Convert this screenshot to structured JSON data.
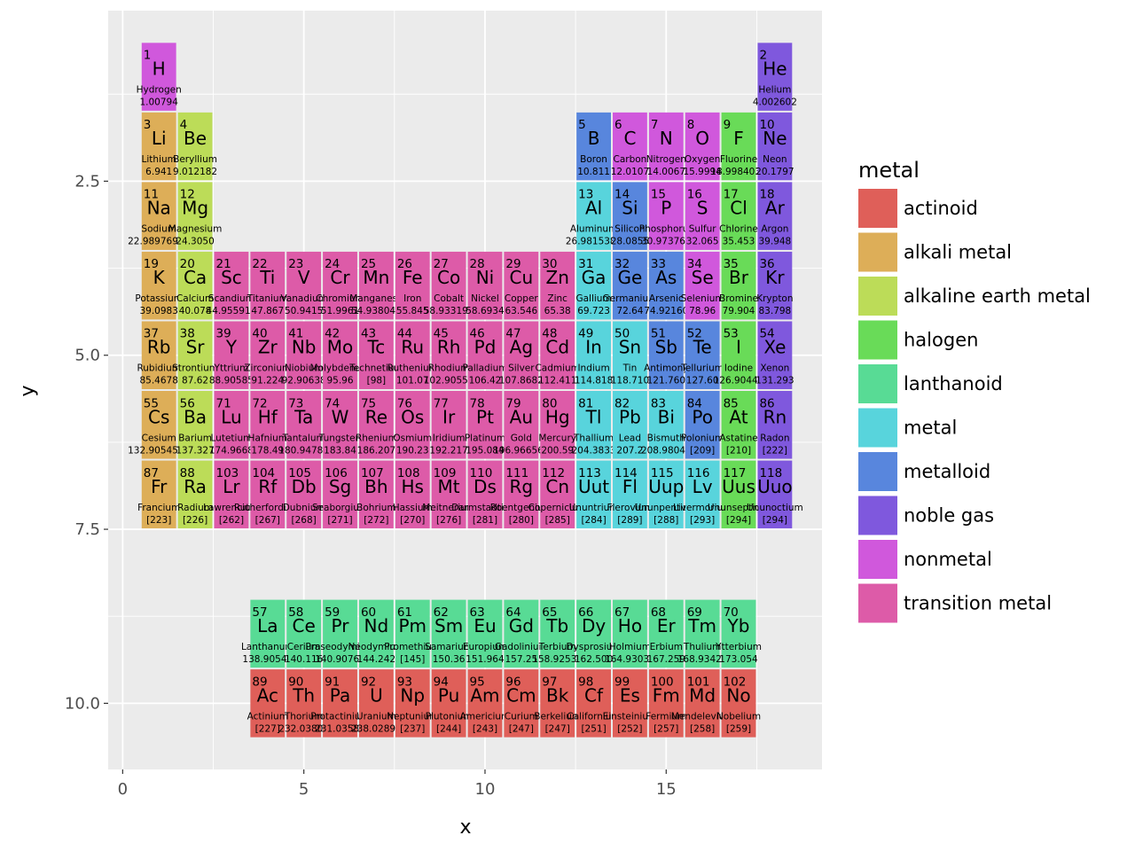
{
  "chart_data": {
    "type": "heatmap",
    "title": "",
    "xlabel": "x",
    "ylabel": "y",
    "xlim": [
      -0.4,
      19.3
    ],
    "ylim": [
      0.05,
      10.95
    ],
    "y_reversed": true,
    "grid": true,
    "x_ticks": [
      0,
      5,
      10,
      15
    ],
    "x_tick_labels": [
      "0",
      "5",
      "10",
      "15"
    ],
    "y_ticks": [
      2.5,
      5.0,
      7.5,
      10.0
    ],
    "y_tick_labels": [
      "2.5",
      "5.0",
      "7.5",
      "10.0"
    ],
    "legend": {
      "title": "metal",
      "position": "right",
      "entries": [
        "actinoid",
        "alkali metal",
        "alkaline earth metal",
        "halogen",
        "lanthanoid",
        "metal",
        "metalloid",
        "noble gas",
        "nonmetal",
        "transition metal"
      ]
    },
    "colors": {
      "actinoid": "#df5f59",
      "alkali metal": "#ddae58",
      "alkaline earth metal": "#bcdc58",
      "halogen": "#69db58",
      "lanthanoid": "#58db95",
      "metal": "#58d4dc",
      "metalloid": "#5886dd",
      "noble gas": "#7f58dd",
      "nonmetal": "#d058dc",
      "transition metal": "#dd5ba8"
    },
    "columns": [
      "number",
      "symbol",
      "name",
      "mass",
      "x",
      "y",
      "metal"
    ],
    "elements": [
      [
        1,
        "H",
        "Hydrogen",
        "1.00794",
        1,
        1,
        "nonmetal"
      ],
      [
        2,
        "He",
        "Helium",
        "4.002602",
        18,
        1,
        "noble gas"
      ],
      [
        3,
        "Li",
        "Lithium",
        "6.941",
        1,
        2,
        "alkali metal"
      ],
      [
        4,
        "Be",
        "Beryllium",
        "9.012182",
        2,
        2,
        "alkaline earth metal"
      ],
      [
        5,
        "B",
        "Boron",
        "10.811",
        13,
        2,
        "metalloid"
      ],
      [
        6,
        "C",
        "Carbon",
        "12.0107",
        14,
        2,
        "nonmetal"
      ],
      [
        7,
        "N",
        "Nitrogen",
        "14.0067",
        15,
        2,
        "nonmetal"
      ],
      [
        8,
        "O",
        "Oxygen",
        "15.9994",
        16,
        2,
        "nonmetal"
      ],
      [
        9,
        "F",
        "Fluorine",
        "18.9984032",
        17,
        2,
        "halogen"
      ],
      [
        10,
        "Ne",
        "Neon",
        "20.1797",
        18,
        2,
        "noble gas"
      ],
      [
        11,
        "Na",
        "Sodium",
        "22.98976928",
        1,
        3,
        "alkali metal"
      ],
      [
        12,
        "Mg",
        "Magnesium",
        "24.3050",
        2,
        3,
        "alkaline earth metal"
      ],
      [
        13,
        "Al",
        "Aluminum",
        "26.9815386",
        13,
        3,
        "metal"
      ],
      [
        14,
        "Si",
        "Silicon",
        "28.0855",
        14,
        3,
        "metalloid"
      ],
      [
        15,
        "P",
        "Phosphorus",
        "30.973762",
        15,
        3,
        "nonmetal"
      ],
      [
        16,
        "S",
        "Sulfur",
        "32.065",
        16,
        3,
        "nonmetal"
      ],
      [
        17,
        "Cl",
        "Chlorine",
        "35.453",
        17,
        3,
        "halogen"
      ],
      [
        18,
        "Ar",
        "Argon",
        "39.948",
        18,
        3,
        "noble gas"
      ],
      [
        19,
        "K",
        "Potassium",
        "39.0983",
        1,
        4,
        "alkali metal"
      ],
      [
        20,
        "Ca",
        "Calcium",
        "40.078",
        2,
        4,
        "alkaline earth metal"
      ],
      [
        21,
        "Sc",
        "Scandium",
        "44.955912",
        3,
        4,
        "transition metal"
      ],
      [
        22,
        "Ti",
        "Titanium",
        "47.867",
        4,
        4,
        "transition metal"
      ],
      [
        23,
        "V",
        "Vanadium",
        "50.9415",
        5,
        4,
        "transition metal"
      ],
      [
        24,
        "Cr",
        "Chromium",
        "51.9961",
        6,
        4,
        "transition metal"
      ],
      [
        25,
        "Mn",
        "Manganese",
        "54.938045",
        7,
        4,
        "transition metal"
      ],
      [
        26,
        "Fe",
        "Iron",
        "55.845",
        8,
        4,
        "transition metal"
      ],
      [
        27,
        "Co",
        "Cobalt",
        "58.933195",
        9,
        4,
        "transition metal"
      ],
      [
        28,
        "Ni",
        "Nickel",
        "58.6934",
        10,
        4,
        "transition metal"
      ],
      [
        29,
        "Cu",
        "Copper",
        "63.546",
        11,
        4,
        "transition metal"
      ],
      [
        30,
        "Zn",
        "Zinc",
        "65.38",
        12,
        4,
        "transition metal"
      ],
      [
        31,
        "Ga",
        "Gallium",
        "69.723",
        13,
        4,
        "metal"
      ],
      [
        32,
        "Ge",
        "Germanium",
        "72.64",
        14,
        4,
        "metalloid"
      ],
      [
        33,
        "As",
        "Arsenic",
        "74.92160",
        15,
        4,
        "metalloid"
      ],
      [
        34,
        "Se",
        "Selenium",
        "78.96",
        16,
        4,
        "nonmetal"
      ],
      [
        35,
        "Br",
        "Bromine",
        "79.904",
        17,
        4,
        "halogen"
      ],
      [
        36,
        "Kr",
        "Krypton",
        "83.798",
        18,
        4,
        "noble gas"
      ],
      [
        37,
        "Rb",
        "Rubidium",
        "85.4678",
        1,
        5,
        "alkali metal"
      ],
      [
        38,
        "Sr",
        "Strontium",
        "87.62",
        2,
        5,
        "alkaline earth metal"
      ],
      [
        39,
        "Y",
        "Yttrium",
        "88.90585",
        3,
        5,
        "transition metal"
      ],
      [
        40,
        "Zr",
        "Zirconium",
        "91.224",
        4,
        5,
        "transition metal"
      ],
      [
        41,
        "Nb",
        "Niobium",
        "92.90638",
        5,
        5,
        "transition metal"
      ],
      [
        42,
        "Mo",
        "Molybdenum",
        "95.96",
        6,
        5,
        "transition metal"
      ],
      [
        43,
        "Tc",
        "Technetium",
        "[98]",
        7,
        5,
        "transition metal"
      ],
      [
        44,
        "Ru",
        "Ruthenium",
        "101.07",
        8,
        5,
        "transition metal"
      ],
      [
        45,
        "Rh",
        "Rhodium",
        "102.90550",
        9,
        5,
        "transition metal"
      ],
      [
        46,
        "Pd",
        "Palladium",
        "106.42",
        10,
        5,
        "transition metal"
      ],
      [
        47,
        "Ag",
        "Silver",
        "107.8682",
        11,
        5,
        "transition metal"
      ],
      [
        48,
        "Cd",
        "Cadmium",
        "112.411",
        12,
        5,
        "transition metal"
      ],
      [
        49,
        "In",
        "Indium",
        "114.818",
        13,
        5,
        "metal"
      ],
      [
        50,
        "Sn",
        "Tin",
        "118.710",
        14,
        5,
        "metal"
      ],
      [
        51,
        "Sb",
        "Antimony",
        "121.760",
        15,
        5,
        "metalloid"
      ],
      [
        52,
        "Te",
        "Tellurium",
        "127.60",
        16,
        5,
        "metalloid"
      ],
      [
        53,
        "I",
        "Iodine",
        "126.90447",
        17,
        5,
        "halogen"
      ],
      [
        54,
        "Xe",
        "Xenon",
        "131.293",
        18,
        5,
        "noble gas"
      ],
      [
        55,
        "Cs",
        "Cesium",
        "132.9054519",
        1,
        6,
        "alkali metal"
      ],
      [
        56,
        "Ba",
        "Barium",
        "137.327",
        2,
        6,
        "alkaline earth metal"
      ],
      [
        71,
        "Lu",
        "Lutetium",
        "174.9668",
        3,
        6,
        "transition metal"
      ],
      [
        72,
        "Hf",
        "Hafnium",
        "178.49",
        4,
        6,
        "transition metal"
      ],
      [
        73,
        "Ta",
        "Tantalum",
        "180.94788",
        5,
        6,
        "transition metal"
      ],
      [
        74,
        "W",
        "Tungsten",
        "183.84",
        6,
        6,
        "transition metal"
      ],
      [
        75,
        "Re",
        "Rhenium",
        "186.207",
        7,
        6,
        "transition metal"
      ],
      [
        76,
        "Os",
        "Osmium",
        "190.23",
        8,
        6,
        "transition metal"
      ],
      [
        77,
        "Ir",
        "Iridium",
        "192.217",
        9,
        6,
        "transition metal"
      ],
      [
        78,
        "Pt",
        "Platinum",
        "195.084",
        10,
        6,
        "transition metal"
      ],
      [
        79,
        "Au",
        "Gold",
        "196.966569",
        11,
        6,
        "transition metal"
      ],
      [
        80,
        "Hg",
        "Mercury",
        "200.59",
        12,
        6,
        "transition metal"
      ],
      [
        81,
        "Tl",
        "Thallium",
        "204.3833",
        13,
        6,
        "metal"
      ],
      [
        82,
        "Pb",
        "Lead",
        "207.2",
        14,
        6,
        "metal"
      ],
      [
        83,
        "Bi",
        "Bismuth",
        "208.98040",
        15,
        6,
        "metal"
      ],
      [
        84,
        "Po",
        "Polonium",
        "[209]",
        16,
        6,
        "metalloid"
      ],
      [
        85,
        "At",
        "Astatine",
        "[210]",
        17,
        6,
        "halogen"
      ],
      [
        86,
        "Rn",
        "Radon",
        "[222]",
        18,
        6,
        "noble gas"
      ],
      [
        87,
        "Fr",
        "Francium",
        "[223]",
        1,
        7,
        "alkali metal"
      ],
      [
        88,
        "Ra",
        "Radium",
        "[226]",
        2,
        7,
        "alkaline earth metal"
      ],
      [
        103,
        "Lr",
        "Lawrencium",
        "[262]",
        3,
        7,
        "transition metal"
      ],
      [
        104,
        "Rf",
        "Rutherfordium",
        "[267]",
        4,
        7,
        "transition metal"
      ],
      [
        105,
        "Db",
        "Dubnium",
        "[268]",
        5,
        7,
        "transition metal"
      ],
      [
        106,
        "Sg",
        "Seaborgium",
        "[271]",
        6,
        7,
        "transition metal"
      ],
      [
        107,
        "Bh",
        "Bohrium",
        "[272]",
        7,
        7,
        "transition metal"
      ],
      [
        108,
        "Hs",
        "Hassium",
        "[270]",
        8,
        7,
        "transition metal"
      ],
      [
        109,
        "Mt",
        "Meitnerium",
        "[276]",
        9,
        7,
        "transition metal"
      ],
      [
        110,
        "Ds",
        "Darmstadtium",
        "[281]",
        10,
        7,
        "transition metal"
      ],
      [
        111,
        "Rg",
        "Roentgenium",
        "[280]",
        11,
        7,
        "transition metal"
      ],
      [
        112,
        "Cn",
        "Copernicium",
        "[285]",
        12,
        7,
        "transition metal"
      ],
      [
        113,
        "Uut",
        "Ununtrium",
        "[284]",
        13,
        7,
        "metal"
      ],
      [
        114,
        "Fl",
        "Flerovium",
        "[289]",
        14,
        7,
        "metal"
      ],
      [
        115,
        "Uup",
        "Ununpentium",
        "[288]",
        15,
        7,
        "metal"
      ],
      [
        116,
        "Lv",
        "Livermorium",
        "[293]",
        16,
        7,
        "metal"
      ],
      [
        117,
        "Uus",
        "Ununseptium",
        "[294]",
        17,
        7,
        "halogen"
      ],
      [
        118,
        "Uuo",
        "Ununoctium",
        "[294]",
        18,
        7,
        "noble gas"
      ],
      [
        57,
        "La",
        "Lanthanum",
        "138.90547",
        4,
        9,
        "lanthanoid"
      ],
      [
        58,
        "Ce",
        "Cerium",
        "140.116",
        5,
        9,
        "lanthanoid"
      ],
      [
        59,
        "Pr",
        "Praseodymium",
        "140.90765",
        6,
        9,
        "lanthanoid"
      ],
      [
        60,
        "Nd",
        "Neodymium",
        "144.242",
        7,
        9,
        "lanthanoid"
      ],
      [
        61,
        "Pm",
        "Promethium",
        "[145]",
        8,
        9,
        "lanthanoid"
      ],
      [
        62,
        "Sm",
        "Samarium",
        "150.36",
        9,
        9,
        "lanthanoid"
      ],
      [
        63,
        "Eu",
        "Europium",
        "151.964",
        10,
        9,
        "lanthanoid"
      ],
      [
        64,
        "Gd",
        "Gadolinium",
        "157.25",
        11,
        9,
        "lanthanoid"
      ],
      [
        65,
        "Tb",
        "Terbium",
        "158.92535",
        12,
        9,
        "lanthanoid"
      ],
      [
        66,
        "Dy",
        "Dysprosium",
        "162.500",
        13,
        9,
        "lanthanoid"
      ],
      [
        67,
        "Ho",
        "Holmium",
        "164.93032",
        14,
        9,
        "lanthanoid"
      ],
      [
        68,
        "Er",
        "Erbium",
        "167.259",
        15,
        9,
        "lanthanoid"
      ],
      [
        69,
        "Tm",
        "Thulium",
        "168.93421",
        16,
        9,
        "lanthanoid"
      ],
      [
        70,
        "Yb",
        "Ytterbium",
        "173.054",
        17,
        9,
        "lanthanoid"
      ],
      [
        89,
        "Ac",
        "Actinium",
        "[227]",
        4,
        10,
        "actinoid"
      ],
      [
        90,
        "Th",
        "Thorium",
        "232.03806",
        5,
        10,
        "actinoid"
      ],
      [
        91,
        "Pa",
        "Protactinium",
        "231.03588",
        6,
        10,
        "actinoid"
      ],
      [
        92,
        "U",
        "Uranium",
        "238.02891",
        7,
        10,
        "actinoid"
      ],
      [
        93,
        "Np",
        "Neptunium",
        "[237]",
        8,
        10,
        "actinoid"
      ],
      [
        94,
        "Pu",
        "Plutonium",
        "[244]",
        9,
        10,
        "actinoid"
      ],
      [
        95,
        "Am",
        "Americium",
        "[243]",
        10,
        10,
        "actinoid"
      ],
      [
        96,
        "Cm",
        "Curium",
        "[247]",
        11,
        10,
        "actinoid"
      ],
      [
        97,
        "Bk",
        "Berkelium",
        "[247]",
        12,
        10,
        "actinoid"
      ],
      [
        98,
        "Cf",
        "Californium",
        "[251]",
        13,
        10,
        "actinoid"
      ],
      [
        99,
        "Es",
        "Einsteinium",
        "[252]",
        14,
        10,
        "actinoid"
      ],
      [
        100,
        "Fm",
        "Fermium",
        "[257]",
        15,
        10,
        "actinoid"
      ],
      [
        101,
        "Md",
        "Mendelevium",
        "[258]",
        16,
        10,
        "actinoid"
      ],
      [
        102,
        "No",
        "Nobelium",
        "[259]",
        17,
        10,
        "actinoid"
      ]
    ]
  }
}
